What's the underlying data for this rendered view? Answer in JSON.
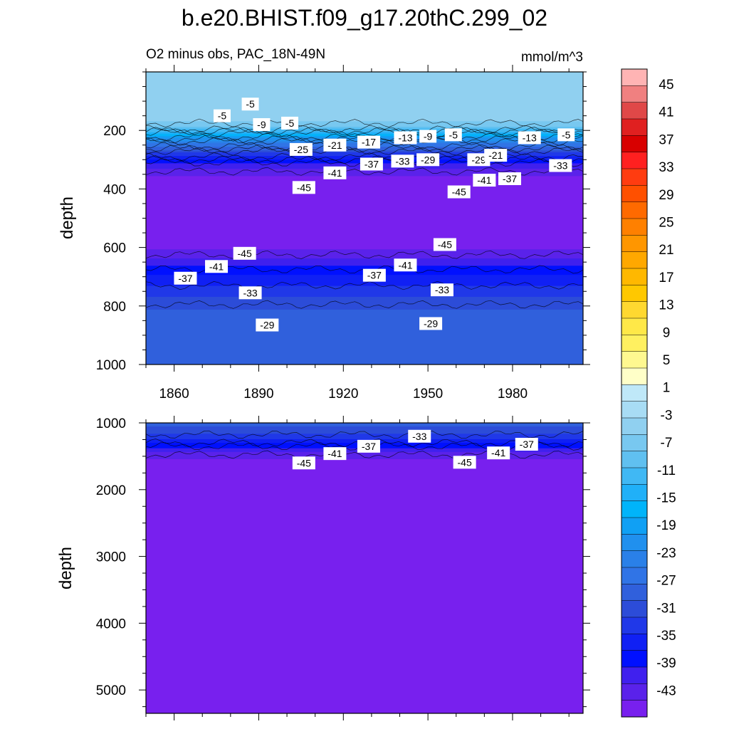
{
  "chart_data": [
    {
      "type": "contour",
      "title": "b.e20.BHIST.f09_g17.20thC.299_02",
      "subtitle_left": "O2 minus obs, PAC_18N-49N",
      "units": "mmol/m^3",
      "panel": "upper",
      "xlabel": "",
      "ylabel": "depth",
      "xlim": [
        1850,
        2005
      ],
      "ylim": [
        1000,
        0
      ],
      "x_ticks": [
        1860,
        1890,
        1920,
        1950,
        1980
      ],
      "y_ticks": [
        200,
        400,
        600,
        800,
        1000
      ],
      "depth_profile": [
        {
          "depth": 0,
          "value": -5
        },
        {
          "depth": 160,
          "value": -5
        },
        {
          "depth": 190,
          "value": -9
        },
        {
          "depth": 215,
          "value": -17
        },
        {
          "depth": 245,
          "value": -25
        },
        {
          "depth": 280,
          "value": -33
        },
        {
          "depth": 320,
          "value": -41
        },
        {
          "depth": 360,
          "value": -45
        },
        {
          "depth": 600,
          "value": -45
        },
        {
          "depth": 650,
          "value": -41
        },
        {
          "depth": 700,
          "value": -37
        },
        {
          "depth": 760,
          "value": -33
        },
        {
          "depth": 830,
          "value": -29
        },
        {
          "depth": 1000,
          "value": -29
        }
      ],
      "contour_labels": [
        {
          "text": "-5",
          "x": 1887,
          "depth": 110
        },
        {
          "text": "-5",
          "x": 1877,
          "depth": 150
        },
        {
          "text": "-9",
          "x": 1891,
          "depth": 180
        },
        {
          "text": "-5",
          "x": 1901,
          "depth": 175
        },
        {
          "text": "-25",
          "x": 1905,
          "depth": 265
        },
        {
          "text": "-21",
          "x": 1917,
          "depth": 250
        },
        {
          "text": "-17",
          "x": 1929,
          "depth": 240
        },
        {
          "text": "-13",
          "x": 1942,
          "depth": 225
        },
        {
          "text": "-9",
          "x": 1950,
          "depth": 220
        },
        {
          "text": "-5",
          "x": 1959,
          "depth": 215
        },
        {
          "text": "-13",
          "x": 1986,
          "depth": 225
        },
        {
          "text": "-5",
          "x": 1999,
          "depth": 215
        },
        {
          "text": "-37",
          "x": 1930,
          "depth": 315
        },
        {
          "text": "-33",
          "x": 1941,
          "depth": 305
        },
        {
          "text": "-29",
          "x": 1950,
          "depth": 300
        },
        {
          "text": "-29",
          "x": 1968,
          "depth": 300
        },
        {
          "text": "-21",
          "x": 1974,
          "depth": 285
        },
        {
          "text": "-33",
          "x": 1997,
          "depth": 320
        },
        {
          "text": "-41",
          "x": 1917,
          "depth": 345
        },
        {
          "text": "-45",
          "x": 1906,
          "depth": 395
        },
        {
          "text": "-45",
          "x": 1961,
          "depth": 410
        },
        {
          "text": "-41",
          "x": 1970,
          "depth": 370
        },
        {
          "text": "-37",
          "x": 1979,
          "depth": 365
        },
        {
          "text": "-45",
          "x": 1885,
          "depth": 620
        },
        {
          "text": "-45",
          "x": 1956,
          "depth": 590
        },
        {
          "text": "-41",
          "x": 1875,
          "depth": 665
        },
        {
          "text": "-41",
          "x": 1942,
          "depth": 660
        },
        {
          "text": "-37",
          "x": 1864,
          "depth": 705
        },
        {
          "text": "-37",
          "x": 1931,
          "depth": 695
        },
        {
          "text": "-33",
          "x": 1887,
          "depth": 755
        },
        {
          "text": "-33",
          "x": 1955,
          "depth": 745
        },
        {
          "text": "-29",
          "x": 1893,
          "depth": 865
        },
        {
          "text": "-29",
          "x": 1951,
          "depth": 860
        }
      ]
    },
    {
      "type": "contour",
      "panel": "lower",
      "xlabel": "",
      "ylabel": "depth",
      "xlim": [
        1850,
        2005
      ],
      "ylim": [
        5350,
        1000
      ],
      "y_ticks": [
        1000,
        2000,
        3000,
        4000,
        5000
      ],
      "depth_profile": [
        {
          "depth": 1000,
          "value": -29
        },
        {
          "depth": 1100,
          "value": -31
        },
        {
          "depth": 1250,
          "value": -35
        },
        {
          "depth": 1400,
          "value": -41
        },
        {
          "depth": 1550,
          "value": -45
        },
        {
          "depth": 5350,
          "value": -45
        }
      ],
      "contour_labels": [
        {
          "text": "-45",
          "x": 1906,
          "depth": 1600
        },
        {
          "text": "-41",
          "x": 1917,
          "depth": 1460
        },
        {
          "text": "-37",
          "x": 1929,
          "depth": 1350
        },
        {
          "text": "-33",
          "x": 1947,
          "depth": 1200
        },
        {
          "text": "-45",
          "x": 1963,
          "depth": 1590
        },
        {
          "text": "-41",
          "x": 1975,
          "depth": 1450
        },
        {
          "text": "-37",
          "x": 1985,
          "depth": 1320
        }
      ]
    }
  ],
  "colorbar": {
    "labels": [
      "45",
      "41",
      "37",
      "33",
      "29",
      "25",
      "21",
      "17",
      "13",
      "9",
      "5",
      "1",
      "-3",
      "-7",
      "-11",
      "-15",
      "-19",
      "-23",
      "-27",
      "-31",
      "-35",
      "-39",
      "-43"
    ],
    "colors": [
      "#ffb4b4",
      "#f08080",
      "#e04848",
      "#e02020",
      "#d80000",
      "#ff2020",
      "#ff3c10",
      "#ff5000",
      "#ff6a00",
      "#ff8000",
      "#ff9600",
      "#ffa800",
      "#ffb800",
      "#ffc800",
      "#ffd830",
      "#ffe848",
      "#fff060",
      "#fff890",
      "#ffffc8",
      "#bfe8f8",
      "#a8dcf4",
      "#90d0f0",
      "#78c8f0",
      "#60c0f0",
      "#40b8f4",
      "#20b0f8",
      "#00b4fa",
      "#10a0f4",
      "#2090ee",
      "#2a80e8",
      "#3074e6",
      "#3060dc",
      "#2c4cd8",
      "#2038e8",
      "#1020f4",
      "#0010ff",
      "#4020ee",
      "#5a22ea",
      "#7820ee"
    ]
  }
}
